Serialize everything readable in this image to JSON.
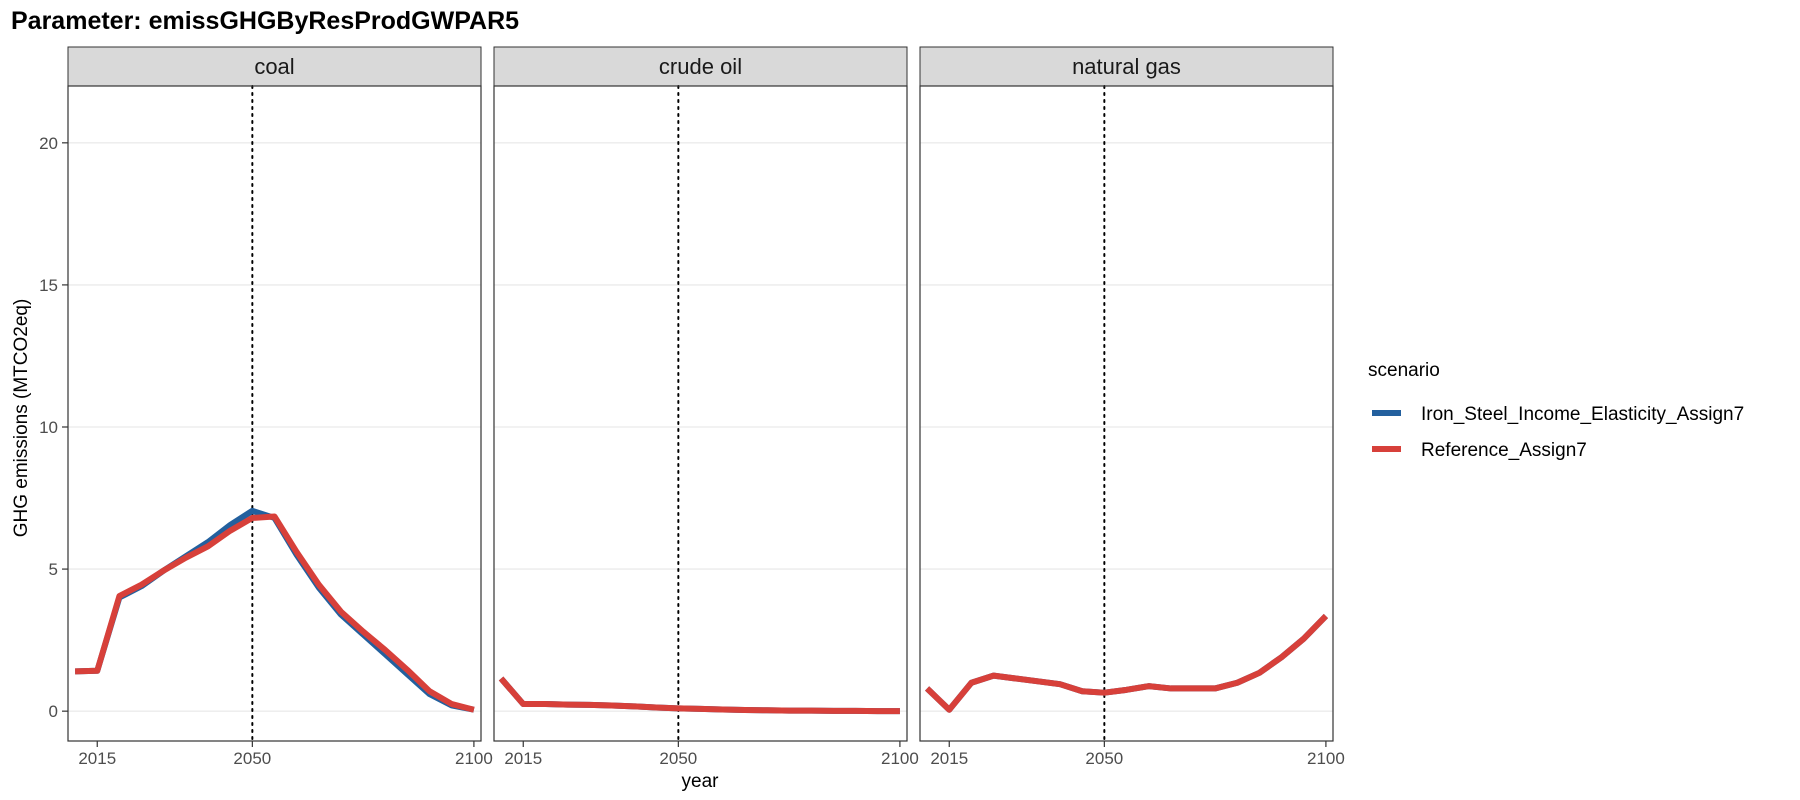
{
  "title": "Parameter: emissGHGByResProdGWPAR5",
  "chart_data": {
    "type": "line",
    "xlabel": "year",
    "ylabel": "GHG emissions (MTCO2eq)",
    "xlim": [
      2010,
      2100
    ],
    "ylim": [
      0,
      21
    ],
    "xticks": [
      2015,
      2050,
      2100
    ],
    "yticks": [
      0,
      5,
      10,
      15,
      20
    ],
    "vline_x": 2050,
    "grid": true,
    "legend": {
      "title": "scenario",
      "position": "right",
      "entries": [
        {
          "name": "Iron_Steel_Income_Elasticity_Assign7",
          "color": "#23609e"
        },
        {
          "name": "Reference_Assign7",
          "color": "#d7403a"
        }
      ]
    },
    "x": [
      2010,
      2015,
      2020,
      2025,
      2030,
      2035,
      2040,
      2045,
      2050,
      2055,
      2060,
      2065,
      2070,
      2075,
      2080,
      2085,
      2090,
      2095,
      2100
    ],
    "panels": [
      {
        "name": "coal",
        "series": [
          {
            "name": "Iron_Steel_Income_Elasticity_Assign7",
            "color": "#23609e",
            "values": [
              1.4,
              1.42,
              4.0,
              4.4,
              4.95,
              5.45,
              5.95,
              6.55,
              7.05,
              6.8,
              5.5,
              4.35,
              3.4,
              2.7,
              2.0,
              1.3,
              0.6,
              0.2,
              0.05
            ]
          },
          {
            "name": "Reference_Assign7",
            "color": "#d7403a",
            "values": [
              1.4,
              1.42,
              4.05,
              4.45,
              4.95,
              5.4,
              5.8,
              6.35,
              6.8,
              6.85,
              5.6,
              4.45,
              3.5,
              2.8,
              2.15,
              1.45,
              0.7,
              0.25,
              0.05
            ]
          }
        ]
      },
      {
        "name": "crude oil",
        "series": [
          {
            "name": "Iron_Steel_Income_Elasticity_Assign7",
            "color": "#23609e",
            "values": [
              1.15,
              0.25,
              0.25,
              0.23,
              0.22,
              0.2,
              0.17,
              0.13,
              0.1,
              0.08,
              0.06,
              0.04,
              0.03,
              0.02,
              0.02,
              0.01,
              0.01,
              0.0,
              0.0
            ]
          },
          {
            "name": "Reference_Assign7",
            "color": "#d7403a",
            "values": [
              1.15,
              0.25,
              0.25,
              0.23,
              0.22,
              0.2,
              0.17,
              0.13,
              0.1,
              0.08,
              0.06,
              0.04,
              0.03,
              0.02,
              0.02,
              0.01,
              0.01,
              0.0,
              0.0
            ]
          }
        ]
      },
      {
        "name": "natural gas",
        "series": [
          {
            "name": "Iron_Steel_Income_Elasticity_Assign7",
            "color": "#23609e",
            "values": [
              0.8,
              0.05,
              1.0,
              1.25,
              1.15,
              1.05,
              0.95,
              0.7,
              0.65,
              0.75,
              0.88,
              0.8,
              0.8,
              0.8,
              1.0,
              1.35,
              1.9,
              2.55,
              3.35
            ]
          },
          {
            "name": "Reference_Assign7",
            "color": "#d7403a",
            "values": [
              0.8,
              0.05,
              1.0,
              1.25,
              1.15,
              1.05,
              0.95,
              0.7,
              0.65,
              0.75,
              0.88,
              0.8,
              0.8,
              0.8,
              1.0,
              1.35,
              1.9,
              2.55,
              3.35
            ]
          }
        ]
      }
    ]
  }
}
